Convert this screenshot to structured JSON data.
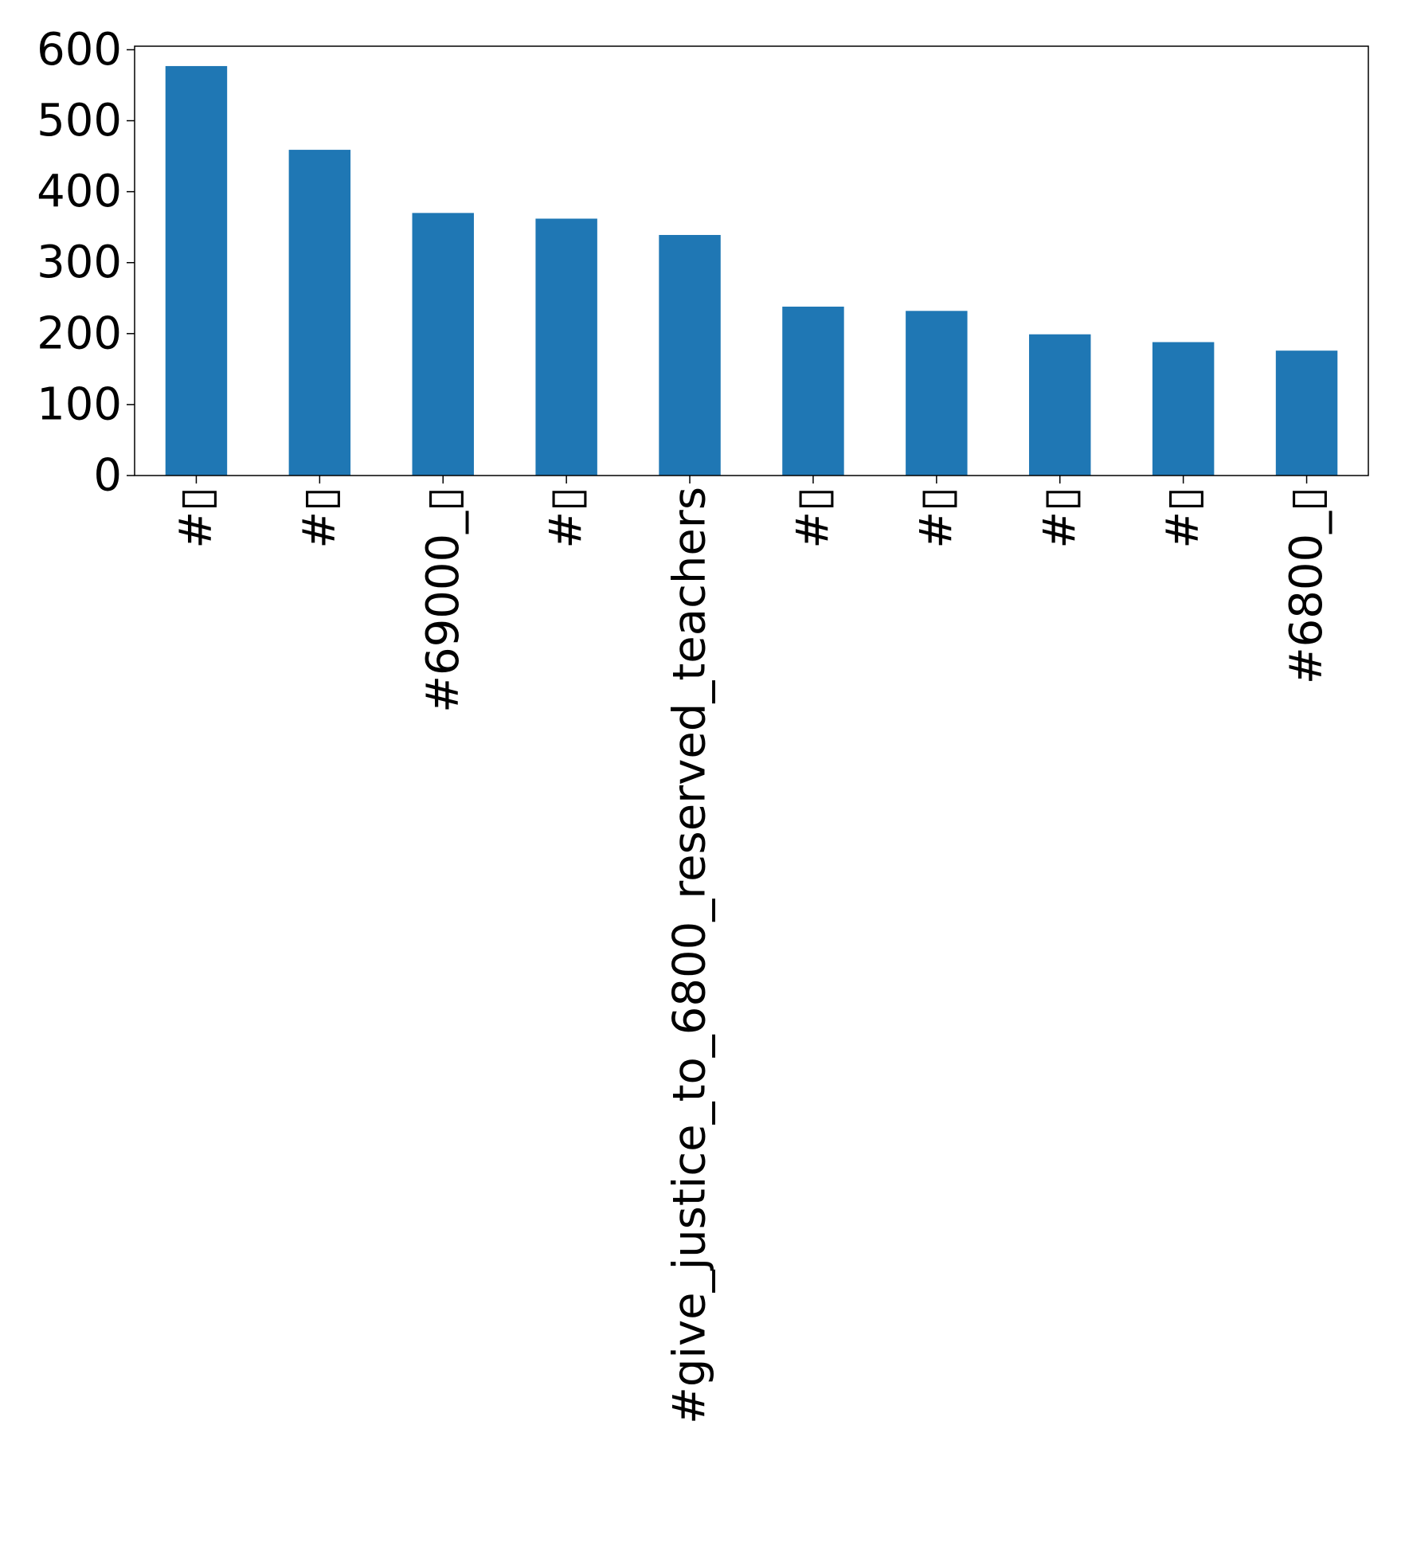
{
  "chart_data": {
    "type": "bar",
    "categories": [
      "#▯",
      "#▯",
      "#69000_▯",
      "#▯",
      "#give_justice_to_6800_reserved_teachers",
      "#▯",
      "#▯",
      "#▯",
      "#▯",
      "#6800_▯"
    ],
    "values": [
      577,
      459,
      370,
      362,
      339,
      238,
      232,
      199,
      188,
      176
    ],
    "yticks": [
      "0",
      "100",
      "200",
      "300",
      "400",
      "500",
      "600"
    ],
    "ylim": [
      0,
      605
    ],
    "title": "",
    "xlabel": "",
    "ylabel": "",
    "grid": false,
    "bar_color": "#1f77b4"
  }
}
